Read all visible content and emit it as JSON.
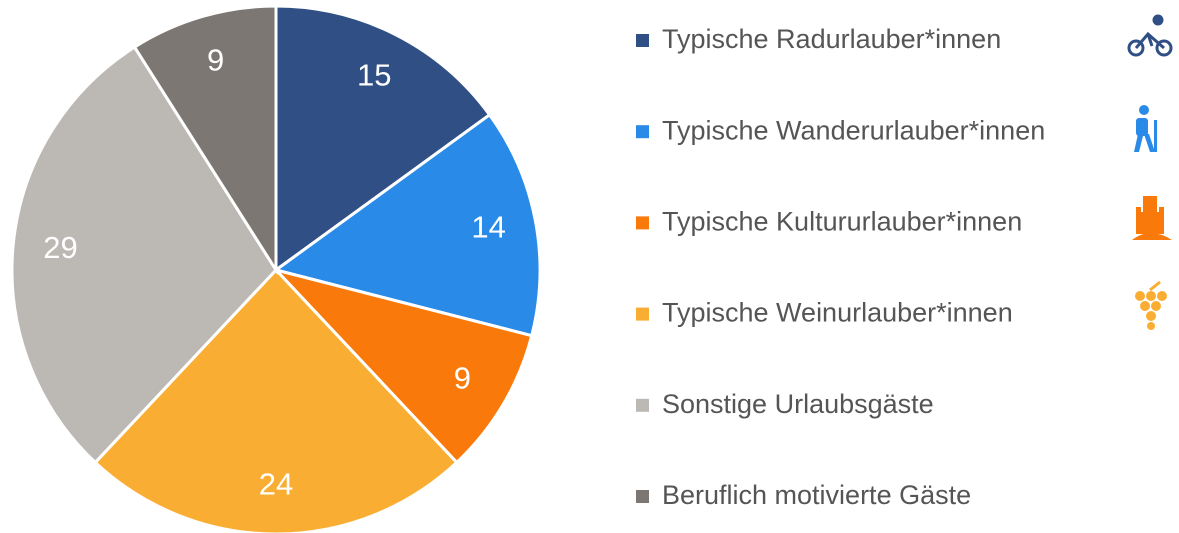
{
  "chart_data": {
    "type": "pie",
    "categories": [
      "Typische Radurlauber*innen",
      "Typische Wanderurlauber*innen",
      "Typische Kultururlauber*innen",
      "Typische Weinurlauber*innen",
      "Sonstige Urlaubsgäste",
      "Beruflich motivierte Gäste"
    ],
    "values": [
      15,
      14,
      9,
      24,
      29,
      9
    ],
    "colors": [
      "#2f4f85",
      "#2a8ae8",
      "#f97a0a",
      "#f9ae33",
      "#bcb8b4",
      "#7d7773"
    ],
    "legend": "right"
  }
}
